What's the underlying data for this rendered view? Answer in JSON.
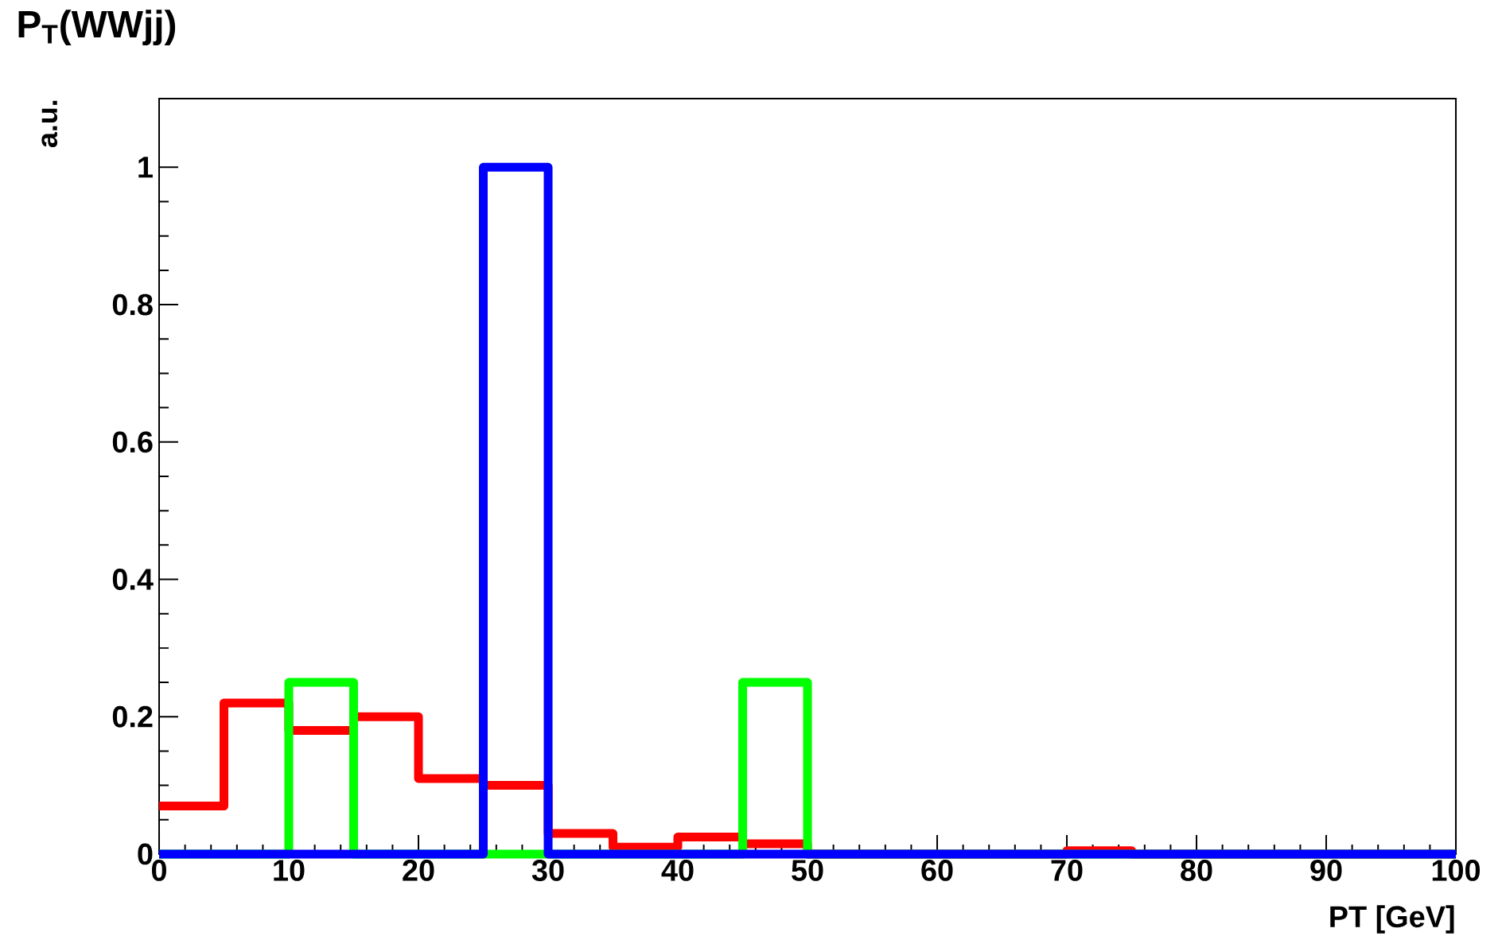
{
  "chart_data": {
    "type": "histogram",
    "title": "P$_{T}$(WWjj)",
    "xlabel": "PT [GeV]",
    "ylabel": "a.u.",
    "bins": [
      0,
      5,
      10,
      15,
      20,
      25,
      30,
      35,
      40,
      45,
      50,
      55,
      60,
      65,
      70,
      75,
      80,
      85,
      90,
      95,
      100
    ],
    "series": [
      {
        "color": "#ff0000",
        "values": [
          0.07,
          0.22,
          0.18,
          0.2,
          0.11,
          0.1,
          0.03,
          0.01,
          0.025,
          0.015,
          0,
          0,
          0,
          0,
          0.005,
          0,
          0,
          0,
          0,
          0
        ]
      },
      {
        "color": "#00ff00",
        "values": [
          0,
          0,
          0.25,
          0,
          0,
          0,
          0,
          0,
          0,
          0.25,
          0,
          0,
          0,
          0,
          0,
          0,
          0,
          0,
          0,
          0
        ]
      },
      {
        "color": "#0000ff",
        "values": [
          0,
          0,
          0,
          0,
          0,
          1,
          0,
          0,
          0,
          0,
          0,
          0,
          0,
          0,
          0,
          0,
          0,
          0,
          0,
          0
        ]
      }
    ],
    "xlim": [
      0,
      100
    ],
    "ylim": [
      0,
      1.1
    ],
    "xticks": [
      0,
      10,
      20,
      30,
      40,
      50,
      60,
      70,
      80,
      90,
      100
    ],
    "yticks": [
      0,
      0.2,
      0.4,
      0.6,
      0.8,
      1
    ],
    "grid": false
  }
}
